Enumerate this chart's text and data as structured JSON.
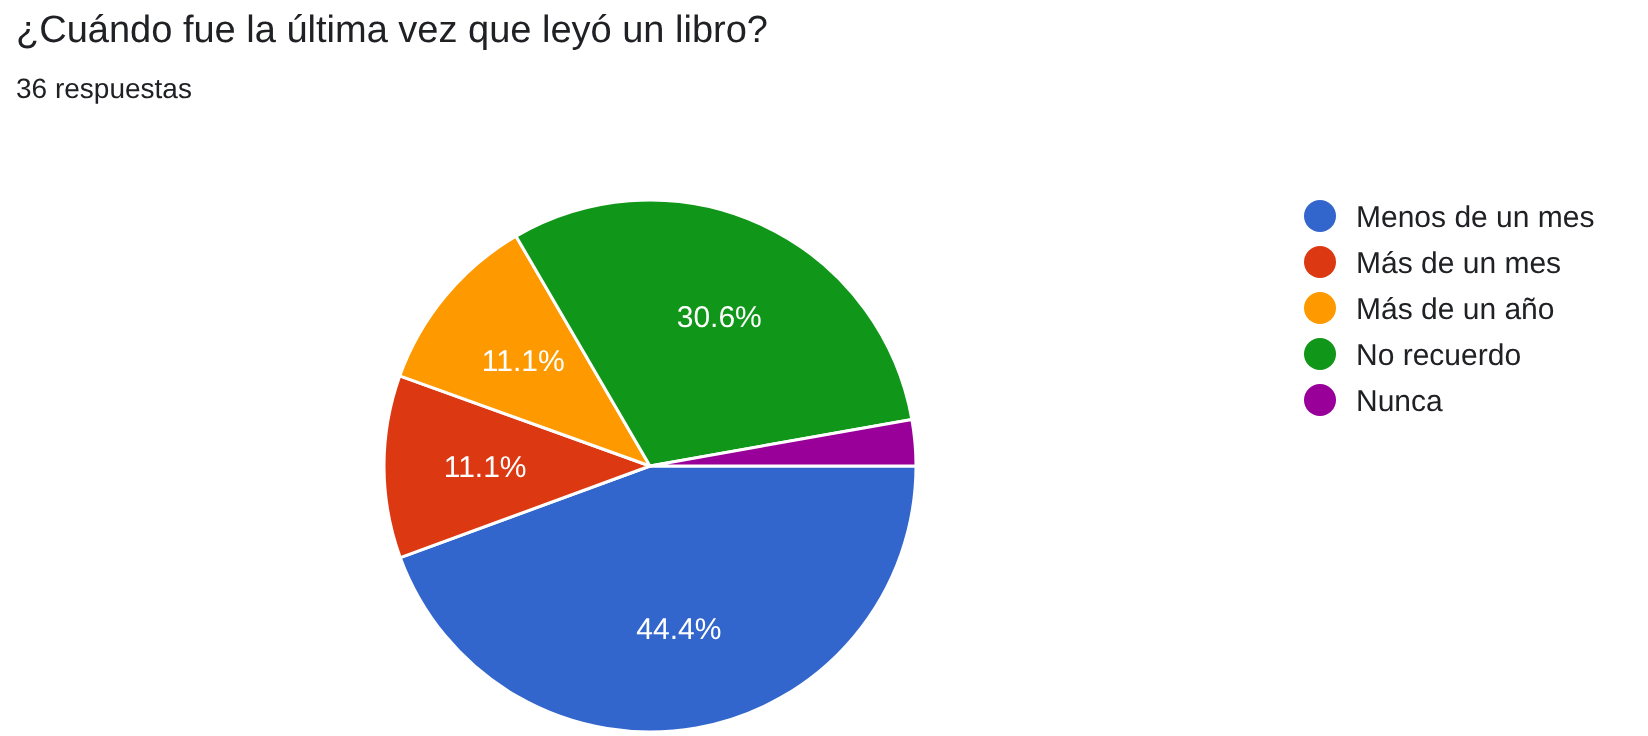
{
  "chart_data": {
    "type": "pie",
    "title": "¿Cuándo fue la última vez que leyó un libro?",
    "subtitle": "36 respuestas",
    "categories": [
      "Menos de un mes",
      "Más de un mes",
      "Más de un año",
      "No recuerdo",
      "Nunca"
    ],
    "values": [
      44.4,
      11.1,
      11.1,
      30.6,
      2.8
    ],
    "colors": [
      "#3366cc",
      "#dc3912",
      "#ff9900",
      "#109618",
      "#990099"
    ],
    "value_labels": [
      "44.4%",
      "11.1%",
      "11.1%",
      "30.6%",
      null
    ],
    "legend": "right"
  }
}
